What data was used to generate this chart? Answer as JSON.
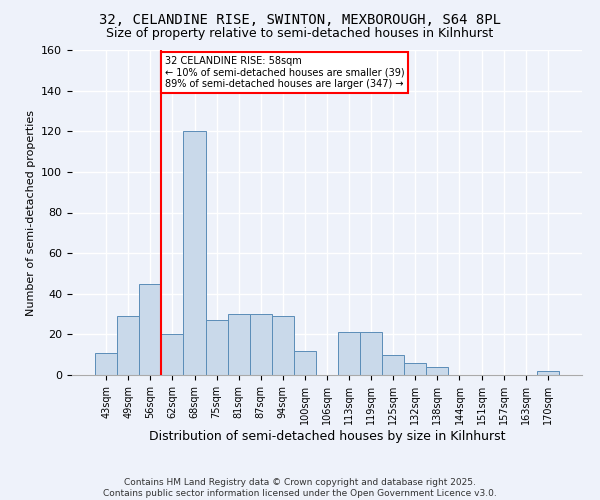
{
  "title1": "32, CELANDINE RISE, SWINTON, MEXBOROUGH, S64 8PL",
  "title2": "Size of property relative to semi-detached houses in Kilnhurst",
  "xlabel": "Distribution of semi-detached houses by size in Kilnhurst",
  "ylabel": "Number of semi-detached properties",
  "categories": [
    "43sqm",
    "49sqm",
    "56sqm",
    "62sqm",
    "68sqm",
    "75sqm",
    "81sqm",
    "87sqm",
    "94sqm",
    "100sqm",
    "106sqm",
    "113sqm",
    "119sqm",
    "125sqm",
    "132sqm",
    "138sqm",
    "144sqm",
    "151sqm",
    "157sqm",
    "163sqm",
    "170sqm"
  ],
  "values": [
    11,
    29,
    45,
    20,
    120,
    27,
    30,
    30,
    29,
    12,
    0,
    21,
    21,
    10,
    6,
    4,
    0,
    0,
    0,
    0,
    2
  ],
  "bar_color": "#c9d9ea",
  "bar_edge_color": "#5b8db8",
  "red_line_index": 2.5,
  "annotation_text": "32 CELANDINE RISE: 58sqm\n← 10% of semi-detached houses are smaller (39)\n89% of semi-detached houses are larger (347) →",
  "annotation_box_color": "white",
  "annotation_box_edge": "red",
  "ylim": [
    0,
    160
  ],
  "yticks": [
    0,
    20,
    40,
    60,
    80,
    100,
    120,
    140,
    160
  ],
  "footer": "Contains HM Land Registry data © Crown copyright and database right 2025.\nContains public sector information licensed under the Open Government Licence v3.0.",
  "background_color": "#eef2fa",
  "grid_color": "#ffffff",
  "title_fontsize": 10,
  "subtitle_fontsize": 9,
  "bar_width": 1.0
}
